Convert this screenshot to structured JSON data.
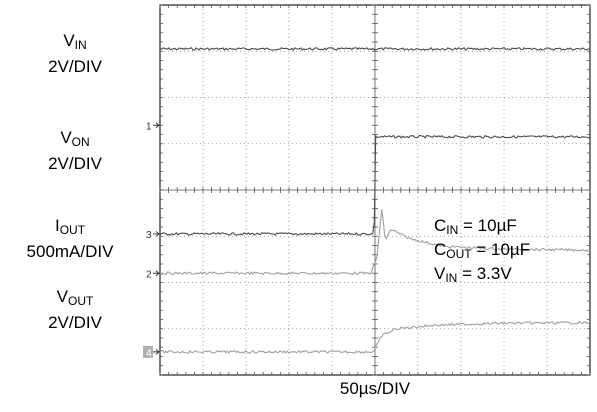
{
  "chart_data": {
    "type": "line",
    "grid": true,
    "x_divisions": 10,
    "y_divisions": 8,
    "xlabel": "50µs/DIV",
    "x_time_range_us": [
      0,
      500
    ],
    "channels": [
      {
        "label_main": "V",
        "label_sub": "IN",
        "scale": "2V/DIV",
        "marker": "",
        "baseline_div": 7.05,
        "color": "#4a4a4a",
        "points": [
          [
            0,
            0
          ],
          [
            500,
            0
          ]
        ]
      },
      {
        "label_main": "V",
        "label_sub": "ON",
        "scale": "2V/DIV",
        "marker": "3",
        "baseline_div": 3.05,
        "color": "#4a4a4a",
        "points": [
          [
            0,
            0
          ],
          [
            249,
            0
          ],
          [
            250,
            2.1
          ],
          [
            500,
            2.1
          ]
        ]
      },
      {
        "label_main": "I",
        "label_sub": "OUT",
        "scale": "500mA/DIV",
        "marker": "2",
        "baseline_div": 2.2,
        "color": "#a0a0a0",
        "points": [
          [
            0,
            0
          ],
          [
            245,
            0
          ],
          [
            252,
            0.3
          ],
          [
            258,
            1.4
          ],
          [
            262,
            0.7
          ],
          [
            268,
            0.95
          ],
          [
            290,
            0.75
          ],
          [
            330,
            0.58
          ],
          [
            400,
            0.52
          ],
          [
            500,
            0.5
          ]
        ]
      },
      {
        "label_main": "V",
        "label_sub": "OUT",
        "scale": "2V/DIV",
        "marker": "4",
        "baseline_div": 0.5,
        "color": "#a0a0a0",
        "points": [
          [
            0,
            0
          ],
          [
            248,
            0
          ],
          [
            258,
            0.35
          ],
          [
            275,
            0.5
          ],
          [
            320,
            0.58
          ],
          [
            400,
            0.62
          ],
          [
            500,
            0.63
          ]
        ]
      }
    ],
    "offset_marker": "1",
    "annotations": [
      {
        "main": "C",
        "sub": "IN",
        "rest": " = 10µF"
      },
      {
        "main": "C",
        "sub": "OUT",
        "rest": " = 10µF"
      },
      {
        "main": "V",
        "sub": "IN",
        "rest": " = 3.3V"
      }
    ]
  }
}
